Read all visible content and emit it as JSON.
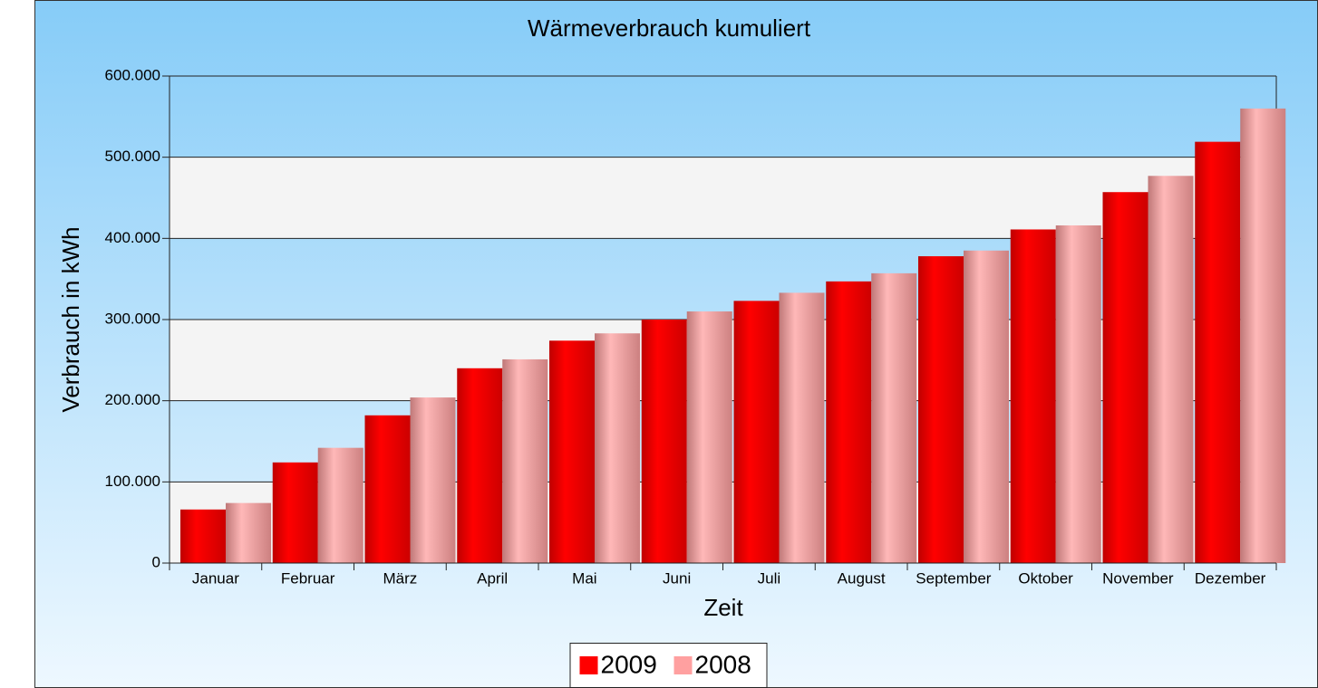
{
  "chart_data": {
    "type": "bar",
    "title": "Wärmeverbrauch kumuliert",
    "x_label": "Zeit",
    "y_label": "Verbrauch in kWh",
    "categories": [
      "Januar",
      "Februar",
      "März",
      "April",
      "Mai",
      "Juni",
      "Juli",
      "August",
      "September",
      "Oktober",
      "November",
      "Dezember"
    ],
    "series": [
      {
        "name": "2009",
        "color": "#ff0000",
        "values": [
          66000,
          124000,
          182000,
          240000,
          274000,
          300000,
          323000,
          347000,
          378000,
          411000,
          457000,
          519000
        ]
      },
      {
        "name": "2008",
        "color": "#ffa0a0",
        "values": [
          74000,
          142000,
          204000,
          251000,
          283000,
          310000,
          333000,
          357000,
          385000,
          416000,
          477000,
          560000
        ]
      }
    ],
    "ylim": [
      0,
      600000
    ],
    "yticks": [
      0,
      {
        "value": 100000,
        "label": "100.000"
      },
      {
        "value": 200000,
        "label": "200.000"
      },
      {
        "value": 300000,
        "label": "300.000"
      },
      {
        "value": 400000,
        "label": "400.000"
      },
      {
        "value": 500000,
        "label": "500.000"
      },
      {
        "value": 600000,
        "label": "600.000"
      }
    ],
    "grid": true,
    "legend": "bottom"
  }
}
